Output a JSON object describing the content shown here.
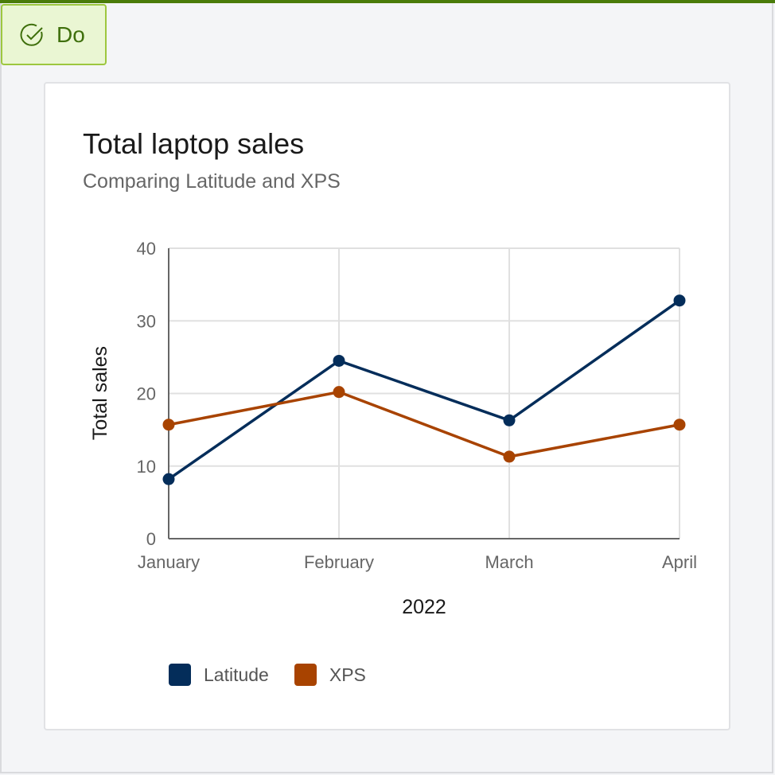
{
  "badge": {
    "label": "Do",
    "icon": "check-circle-icon",
    "color": "#3f6f0c"
  },
  "chart_data": {
    "type": "line",
    "title": "Total laptop sales",
    "subtitle": "Comparing Latitude and XPS",
    "xlabel": "2022",
    "ylabel": "Total sales",
    "categories": [
      "January",
      "February",
      "March",
      "April"
    ],
    "ylim": [
      0,
      40
    ],
    "yticks": [
      0,
      10,
      20,
      30,
      40
    ],
    "grid": true,
    "legend": "bottom-left",
    "series": [
      {
        "name": "Latitude",
        "color": "#042d5a",
        "values": [
          8.2,
          24.5,
          16.3,
          32.8
        ]
      },
      {
        "name": "XPS",
        "color": "#a84300",
        "values": [
          15.7,
          20.2,
          11.3,
          15.7
        ]
      }
    ]
  }
}
